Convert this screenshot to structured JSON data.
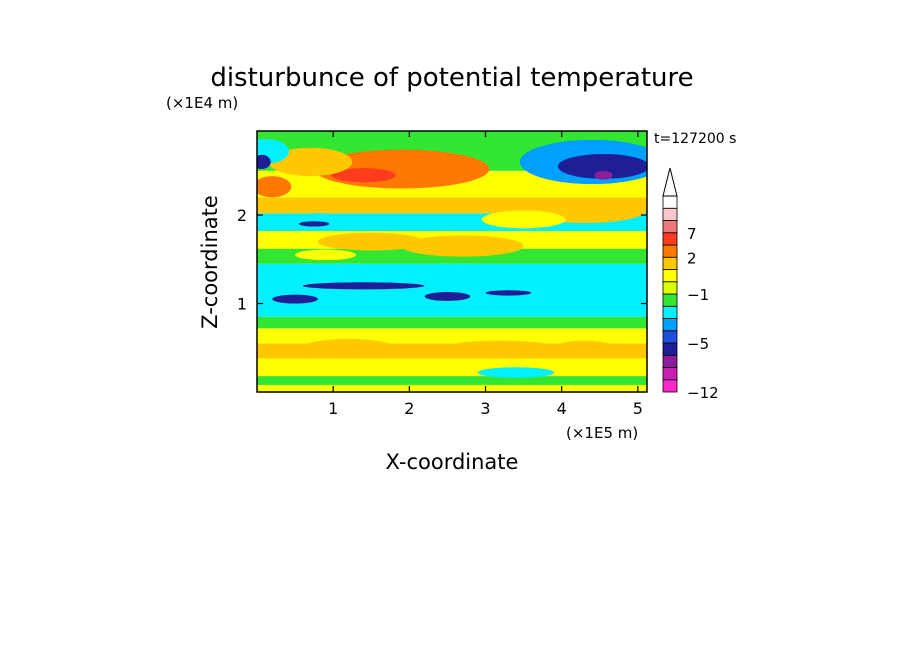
{
  "chart_data": {
    "type": "heatmap",
    "title": "disturbunce of potential temperature",
    "time_label": "t=127200 s",
    "xlabel": "X-coordinate",
    "ylabel": "Z-coordinate",
    "x_unit": "(×1E5 m)",
    "y_unit": "(×1E4 m)",
    "xlim": [
      0,
      5.12
    ],
    "ylim": [
      0,
      2.95
    ],
    "x_ticks": [
      1,
      2,
      3,
      4,
      5
    ],
    "y_ticks": [
      1,
      2
    ],
    "grid": false,
    "colorbar": {
      "placement": "right",
      "extend_max_arrow": true,
      "levels": [
        -12,
        -10,
        -8,
        -6,
        -5,
        -4,
        -3,
        -2,
        -1,
        0,
        1,
        2,
        4,
        7,
        9,
        11
      ],
      "colors": [
        "#ff28c8",
        "#c81eb4",
        "#8c1e9b",
        "#1e1e96",
        "#1e50dc",
        "#00a0ff",
        "#00f0ff",
        "#32e632",
        "#dcff00",
        "#ffff00",
        "#ffc800",
        "#ff7800",
        "#ff3c1e",
        "#f07878",
        "#ffc8c8",
        "#ffffff"
      ],
      "labeled_levels": [
        {
          "value": -12,
          "label": "−12"
        },
        {
          "value": -5,
          "label": "−5"
        },
        {
          "value": -1,
          "label": "−1"
        },
        {
          "value": 2,
          "label": "2"
        },
        {
          "value": 7,
          "label": "7"
        }
      ]
    },
    "bands": [
      {
        "z0": 0.0,
        "z1": 0.08,
        "value": 0.5
      },
      {
        "z0": 0.08,
        "z1": 0.18,
        "value": -1.5
      },
      {
        "z0": 0.18,
        "z1": 0.38,
        "value": 0.5
      },
      {
        "z0": 0.38,
        "z1": 0.55,
        "value": 1.5
      },
      {
        "z0": 0.55,
        "z1": 0.72,
        "value": 0.5
      },
      {
        "z0": 0.72,
        "z1": 0.85,
        "value": -1.5
      },
      {
        "z0": 0.85,
        "z1": 1.45,
        "value": -2.5
      },
      {
        "z0": 1.45,
        "z1": 1.62,
        "value": -1.5
      },
      {
        "z0": 1.62,
        "z1": 1.82,
        "value": 0.5
      },
      {
        "z0": 1.82,
        "z1": 2.02,
        "value": -2.5
      },
      {
        "z0": 2.02,
        "z1": 2.2,
        "value": 1.5
      },
      {
        "z0": 2.2,
        "z1": 2.5,
        "value": 0.5
      },
      {
        "z0": 2.5,
        "z1": 2.95,
        "value": -1.5
      }
    ],
    "blobs": [
      {
        "x": 1.9,
        "z": 2.52,
        "rx": 1.15,
        "rz": 0.22,
        "value": 3
      },
      {
        "x": 1.4,
        "z": 2.45,
        "rx": 0.42,
        "rz": 0.08,
        "value": 5
      },
      {
        "x": 0.7,
        "z": 2.6,
        "rx": 0.55,
        "rz": 0.16,
        "value": 1.5
      },
      {
        "x": 0.12,
        "z": 2.72,
        "rx": 0.3,
        "rz": 0.14,
        "value": -2.5
      },
      {
        "x": 0.06,
        "z": 2.6,
        "rx": 0.12,
        "rz": 0.08,
        "value": -5.5
      },
      {
        "x": 0.2,
        "z": 2.32,
        "rx": 0.25,
        "rz": 0.12,
        "value": 3
      },
      {
        "x": 4.4,
        "z": 2.6,
        "rx": 0.95,
        "rz": 0.25,
        "value": -3.5
      },
      {
        "x": 4.55,
        "z": 2.55,
        "rx": 0.6,
        "rz": 0.14,
        "value": -5.5
      },
      {
        "x": 4.55,
        "z": 2.45,
        "rx": 0.12,
        "rz": 0.05,
        "value": -7
      },
      {
        "x": 4.3,
        "z": 2.05,
        "rx": 0.8,
        "rz": 0.14,
        "value": 1.5
      },
      {
        "x": 3.5,
        "z": 1.95,
        "rx": 0.55,
        "rz": 0.1,
        "value": 0.5
      },
      {
        "x": 0.8,
        "z": 1.95,
        "rx": 0.4,
        "rz": 0.07,
        "value": -2.5
      },
      {
        "x": 0.75,
        "z": 1.9,
        "rx": 0.2,
        "rz": 0.03,
        "value": -5.5
      },
      {
        "x": 1.5,
        "z": 1.7,
        "rx": 0.7,
        "rz": 0.1,
        "value": 1.5
      },
      {
        "x": 2.7,
        "z": 1.65,
        "rx": 0.8,
        "rz": 0.12,
        "value": 1.5
      },
      {
        "x": 0.9,
        "z": 1.55,
        "rx": 0.4,
        "rz": 0.06,
        "value": 0.5
      },
      {
        "x": 1.4,
        "z": 1.2,
        "rx": 0.8,
        "rz": 0.04,
        "value": -5.5
      },
      {
        "x": 2.5,
        "z": 1.08,
        "rx": 0.3,
        "rz": 0.05,
        "value": -5.5
      },
      {
        "x": 3.3,
        "z": 1.12,
        "rx": 0.3,
        "rz": 0.03,
        "value": -5.5
      },
      {
        "x": 0.5,
        "z": 1.05,
        "rx": 0.3,
        "rz": 0.05,
        "value": -5.5
      },
      {
        "x": 1.2,
        "z": 0.5,
        "rx": 0.6,
        "rz": 0.1,
        "value": 1.5
      },
      {
        "x": 3.2,
        "z": 0.48,
        "rx": 0.8,
        "rz": 0.1,
        "value": 1.5
      },
      {
        "x": 4.3,
        "z": 0.5,
        "rx": 0.4,
        "rz": 0.08,
        "value": 1.5
      },
      {
        "x": 3.4,
        "z": 0.22,
        "rx": 0.5,
        "rz": 0.06,
        "value": -2.5
      }
    ]
  }
}
